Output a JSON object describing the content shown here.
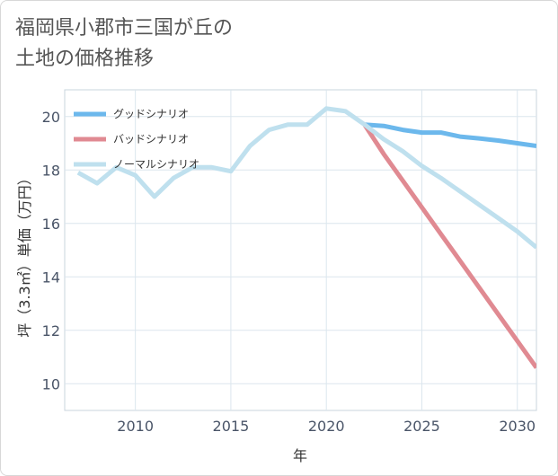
{
  "title_lines": [
    "福岡県小郡市三国が丘の",
    "土地の価格推移"
  ],
  "chart_data": {
    "type": "line",
    "title": "福岡県小郡市三国が丘の土地の価格推移",
    "xlabel": "年",
    "ylabel": "坪（3.3㎡）単価（万円）",
    "xlim": [
      2006.3,
      2031
    ],
    "ylim": [
      9.0,
      21.0
    ],
    "xticks": [
      2010,
      2015,
      2020,
      2025,
      2030
    ],
    "yticks": [
      10,
      12,
      14,
      16,
      18,
      20
    ],
    "grid": true,
    "legend_position": "top-left",
    "series": [
      {
        "name": "グッドシナリオ",
        "color": "#6cb8ec",
        "x": [
          2022,
          2023,
          2024,
          2025,
          2026,
          2027,
          2028,
          2029,
          2030,
          2031
        ],
        "values": [
          19.7,
          19.65,
          19.5,
          19.4,
          19.4,
          19.25,
          19.18,
          19.1,
          19.0,
          18.9
        ]
      },
      {
        "name": "バッドシナリオ",
        "color": "#e08a92",
        "x": [
          2022,
          2023,
          2024,
          2025,
          2026,
          2027,
          2028,
          2029,
          2030,
          2031
        ],
        "values": [
          19.7,
          18.6,
          17.6,
          16.6,
          15.6,
          14.6,
          13.6,
          12.6,
          11.6,
          10.6
        ]
      },
      {
        "name": "ノーマルシナリオ",
        "color": "#bfe0ee",
        "x": [
          2007,
          2008,
          2009,
          2010,
          2011,
          2012,
          2013,
          2014,
          2015,
          2016,
          2017,
          2018,
          2019,
          2020,
          2021,
          2022,
          2023,
          2024,
          2025,
          2026,
          2027,
          2028,
          2029,
          2030,
          2031
        ],
        "values": [
          17.9,
          17.5,
          18.1,
          17.8,
          17.0,
          17.7,
          18.1,
          18.1,
          17.95,
          18.9,
          19.5,
          19.7,
          19.7,
          20.3,
          20.2,
          19.7,
          19.15,
          18.7,
          18.15,
          17.7,
          17.2,
          16.7,
          16.2,
          15.7,
          15.1
        ]
      }
    ]
  }
}
